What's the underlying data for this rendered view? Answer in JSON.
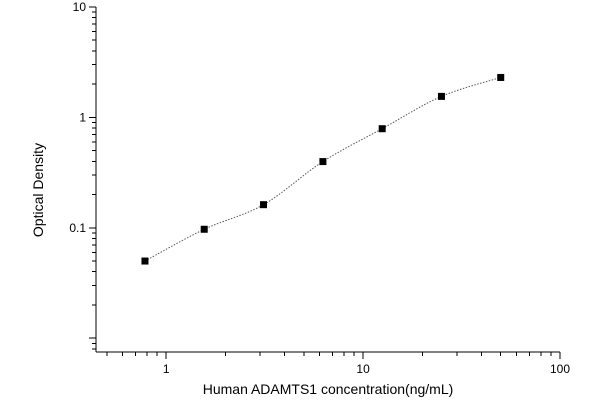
{
  "chart_data": {
    "type": "scatter",
    "title": "",
    "xlabel": "Human ADAMTS1 concentration(ng/mL)",
    "ylabel": "Optical Density",
    "x_scale": "log",
    "y_scale": "log",
    "xlim": [
      0.44,
      100
    ],
    "ylim": [
      0.0075,
      10
    ],
    "x_tick_labels": [
      "1",
      "10",
      "100"
    ],
    "y_tick_labels": [
      "0.1",
      "1",
      "10"
    ],
    "grid": false,
    "legend": "none",
    "point_color": "#000000",
    "line_color": "#555555",
    "series": [
      {
        "x": [
          0.78,
          1.56,
          3.12,
          6.25,
          12.5,
          25,
          50
        ],
        "y": [
          0.05,
          0.097,
          0.162,
          0.398,
          0.79,
          1.55,
          2.3
        ]
      }
    ]
  }
}
